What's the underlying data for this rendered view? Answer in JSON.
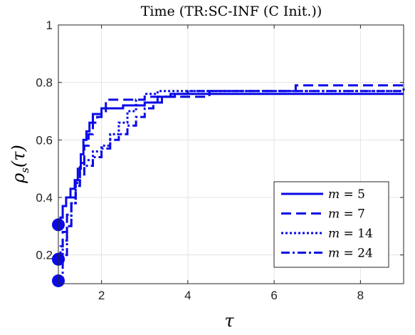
{
  "chart_data": {
    "type": "line",
    "title": "Time (TR:SC-INF (C Init.))",
    "xlabel": "τ",
    "ylabel_main": "ρ",
    "ylabel_sub": "s",
    "ylabel_arg": "(τ)",
    "xlim": [
      1,
      9
    ],
    "ylim": [
      0.1,
      1
    ],
    "xticks": [
      2,
      4,
      6,
      8
    ],
    "yticks": [
      0.2,
      0.4,
      0.6,
      0.8,
      1
    ],
    "ytick_labels": [
      "0.2",
      "0.4",
      "0.6",
      "0.8",
      "1"
    ],
    "grid": true,
    "legend_position": "bottom-right",
    "step": true,
    "color": "#0a0ae6",
    "series": [
      {
        "name": "m = 5",
        "label_var": "m",
        "label_val": "5",
        "dash": "solid",
        "start_marker": 0.305,
        "x": [
          1,
          1.05,
          1.1,
          1.18,
          1.28,
          1.38,
          1.45,
          1.52,
          1.58,
          1.65,
          1.72,
          1.8,
          1.9,
          2.0,
          2.2,
          2.5,
          3.0,
          3.3,
          3.7,
          9
        ],
        "y": [
          0.305,
          0.33,
          0.37,
          0.4,
          0.43,
          0.46,
          0.5,
          0.55,
          0.6,
          0.63,
          0.66,
          0.69,
          0.69,
          0.71,
          0.71,
          0.72,
          0.73,
          0.75,
          0.76,
          0.76
        ]
      },
      {
        "name": "m = 7",
        "label_var": "m",
        "label_val": "7",
        "dash": "dashed",
        "start_marker": 0.185,
        "x": [
          1,
          1.05,
          1.1,
          1.2,
          1.3,
          1.4,
          1.5,
          1.6,
          1.7,
          1.8,
          1.9,
          2.0,
          2.1,
          2.3,
          2.6,
          3.0,
          4.5,
          6.5,
          9
        ],
        "y": [
          0.185,
          0.23,
          0.28,
          0.34,
          0.4,
          0.46,
          0.52,
          0.58,
          0.62,
          0.66,
          0.68,
          0.7,
          0.74,
          0.74,
          0.74,
          0.75,
          0.77,
          0.79,
          0.79
        ]
      },
      {
        "name": "m = 14",
        "label_var": "m",
        "label_val": "14",
        "dash": "dotted",
        "start_marker": 0.185,
        "x": [
          1,
          1.1,
          1.2,
          1.3,
          1.4,
          1.5,
          1.6,
          1.8,
          2.0,
          2.2,
          2.4,
          2.6,
          2.8,
          3.0,
          3.3,
          4.0,
          9
        ],
        "y": [
          0.185,
          0.25,
          0.3,
          0.38,
          0.45,
          0.5,
          0.53,
          0.56,
          0.58,
          0.62,
          0.66,
          0.7,
          0.74,
          0.76,
          0.77,
          0.77,
          0.77
        ]
      },
      {
        "name": "m = 24",
        "label_var": "m",
        "label_val": "24",
        "dash": "dashdot",
        "start_marker": 0.11,
        "x": [
          1,
          1.1,
          1.2,
          1.3,
          1.4,
          1.5,
          1.6,
          1.8,
          2.0,
          2.2,
          2.4,
          2.6,
          2.8,
          3.0,
          3.2,
          3.4,
          3.6,
          4.0,
          9
        ],
        "y": [
          0.11,
          0.2,
          0.3,
          0.38,
          0.44,
          0.48,
          0.51,
          0.54,
          0.57,
          0.6,
          0.62,
          0.65,
          0.68,
          0.71,
          0.73,
          0.75,
          0.76,
          0.77,
          0.78
        ]
      }
    ]
  }
}
